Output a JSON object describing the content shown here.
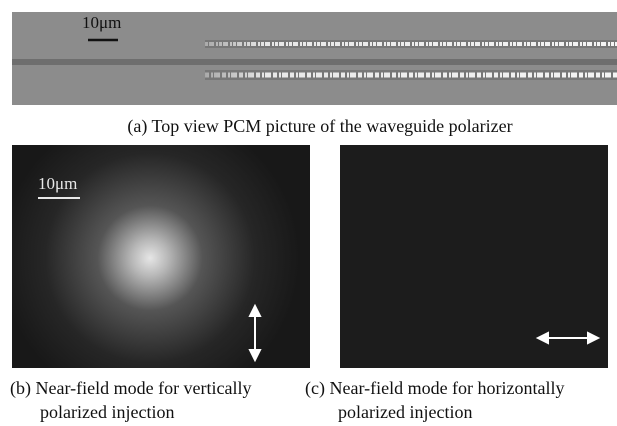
{
  "panels": [
    {
      "scale_label": "10μm",
      "caption": [
        "(a) Top view PCM picture of the waveguide polarizer"
      ]
    },
    {
      "scale_label": "10μm",
      "caption": [
        "(b) Near-field mode for vertically",
        "polarized injection"
      ]
    },
    {
      "caption": [
        "(c) Near-field mode for horizontally",
        "polarized injection"
      ]
    }
  ]
}
